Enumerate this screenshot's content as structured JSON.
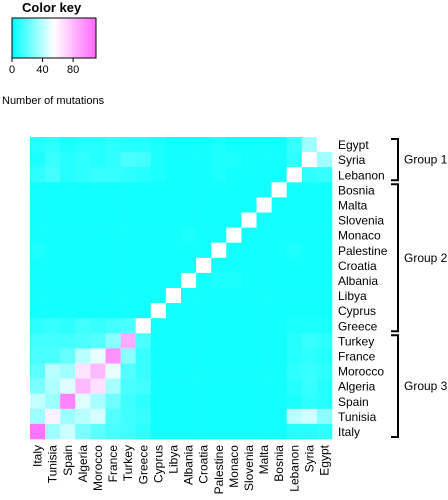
{
  "chart_data": {
    "type": "heatmap",
    "color_key": {
      "title": "Color key",
      "label": "Number of mutations",
      "ticks": [
        0,
        40,
        80
      ],
      "range": [
        0,
        110
      ],
      "colors": [
        "#00ffff",
        "#ffffff",
        "#ff66ff"
      ]
    },
    "x_categories": [
      "Italy",
      "Tunisia",
      "Spain",
      "Algeria",
      "Morocco",
      "France",
      "Turkey",
      "Greece",
      "Cyprus",
      "Libya",
      "Albania",
      "Croatia",
      "Palestine",
      "Monaco",
      "Slovenia",
      "Malta",
      "Bosnia",
      "Lebanon",
      "Syria",
      "Egypt"
    ],
    "y_categories": [
      "Egypt",
      "Syria",
      "Lebanon",
      "Bosnia",
      "Malta",
      "Slovenia",
      "Monaco",
      "Palestine",
      "Croatia",
      "Albania",
      "Libya",
      "Cyprus",
      "Greece",
      "Turkey",
      "France",
      "Morocco",
      "Algeria",
      "Spain",
      "Tunisia",
      "Italy"
    ],
    "groups": [
      {
        "name": "Group 1",
        "from": "Egypt",
        "to": "Lebanon"
      },
      {
        "name": "Group 2",
        "from": "Bosnia",
        "to": "Greece"
      },
      {
        "name": "Group 3",
        "from": "Turkey",
        "to": "Italy"
      }
    ],
    "values": [
      [
        8,
        10,
        6,
        8,
        8,
        10,
        8,
        8,
        6,
        4,
        4,
        4,
        6,
        4,
        4,
        4,
        4,
        12,
        35,
        55
      ],
      [
        6,
        12,
        8,
        10,
        8,
        10,
        16,
        14,
        6,
        4,
        4,
        4,
        6,
        6,
        4,
        4,
        4,
        10,
        55,
        35
      ],
      [
        10,
        14,
        8,
        10,
        12,
        12,
        10,
        8,
        6,
        4,
        4,
        4,
        6,
        4,
        4,
        4,
        4,
        55,
        10,
        12
      ],
      [
        4,
        4,
        4,
        4,
        4,
        4,
        4,
        4,
        4,
        4,
        4,
        4,
        4,
        4,
        4,
        4,
        55,
        4,
        4,
        4
      ],
      [
        4,
        4,
        4,
        4,
        4,
        4,
        4,
        4,
        4,
        4,
        4,
        4,
        4,
        4,
        4,
        55,
        4,
        4,
        4,
        4
      ],
      [
        4,
        4,
        4,
        4,
        4,
        4,
        4,
        4,
        4,
        4,
        4,
        4,
        4,
        4,
        55,
        4,
        4,
        4,
        4,
        4
      ],
      [
        4,
        4,
        4,
        4,
        4,
        4,
        4,
        4,
        4,
        4,
        6,
        4,
        4,
        55,
        4,
        4,
        4,
        4,
        4,
        4
      ],
      [
        6,
        4,
        4,
        4,
        4,
        4,
        4,
        4,
        4,
        4,
        4,
        4,
        55,
        4,
        4,
        4,
        4,
        6,
        4,
        4
      ],
      [
        4,
        4,
        4,
        4,
        4,
        4,
        4,
        4,
        4,
        4,
        4,
        55,
        4,
        4,
        4,
        4,
        4,
        4,
        4,
        4
      ],
      [
        4,
        4,
        4,
        4,
        4,
        4,
        4,
        4,
        4,
        4,
        55,
        4,
        6,
        6,
        4,
        4,
        4,
        4,
        4,
        4
      ],
      [
        4,
        4,
        4,
        4,
        4,
        4,
        4,
        4,
        4,
        55,
        4,
        4,
        4,
        4,
        4,
        4,
        4,
        4,
        4,
        4
      ],
      [
        4,
        4,
        4,
        4,
        4,
        4,
        4,
        4,
        55,
        4,
        4,
        4,
        4,
        4,
        4,
        4,
        4,
        4,
        4,
        4
      ],
      [
        10,
        12,
        10,
        14,
        12,
        14,
        16,
        55,
        4,
        4,
        4,
        4,
        4,
        4,
        4,
        4,
        4,
        6,
        6,
        6
      ],
      [
        14,
        14,
        14,
        16,
        18,
        30,
        85,
        16,
        4,
        4,
        4,
        4,
        4,
        4,
        4,
        4,
        4,
        8,
        12,
        10
      ],
      [
        16,
        16,
        22,
        40,
        50,
        95,
        30,
        12,
        4,
        4,
        4,
        4,
        4,
        4,
        4,
        4,
        4,
        8,
        10,
        8
      ],
      [
        20,
        40,
        35,
        65,
        80,
        50,
        18,
        12,
        4,
        4,
        4,
        4,
        4,
        4,
        4,
        4,
        4,
        10,
        12,
        10
      ],
      [
        26,
        38,
        48,
        80,
        66,
        36,
        16,
        14,
        4,
        4,
        4,
        4,
        4,
        4,
        4,
        4,
        4,
        8,
        12,
        8
      ],
      [
        42,
        34,
        100,
        48,
        36,
        24,
        14,
        10,
        4,
        4,
        4,
        4,
        4,
        4,
        4,
        4,
        4,
        6,
        10,
        8
      ],
      [
        34,
        60,
        34,
        40,
        46,
        18,
        14,
        12,
        4,
        4,
        4,
        4,
        4,
        4,
        4,
        4,
        4,
        40,
        45,
        30
      ],
      [
        105,
        34,
        44,
        26,
        20,
        16,
        14,
        10,
        4,
        4,
        4,
        4,
        4,
        4,
        4,
        4,
        4,
        8,
        8,
        10
      ]
    ]
  }
}
